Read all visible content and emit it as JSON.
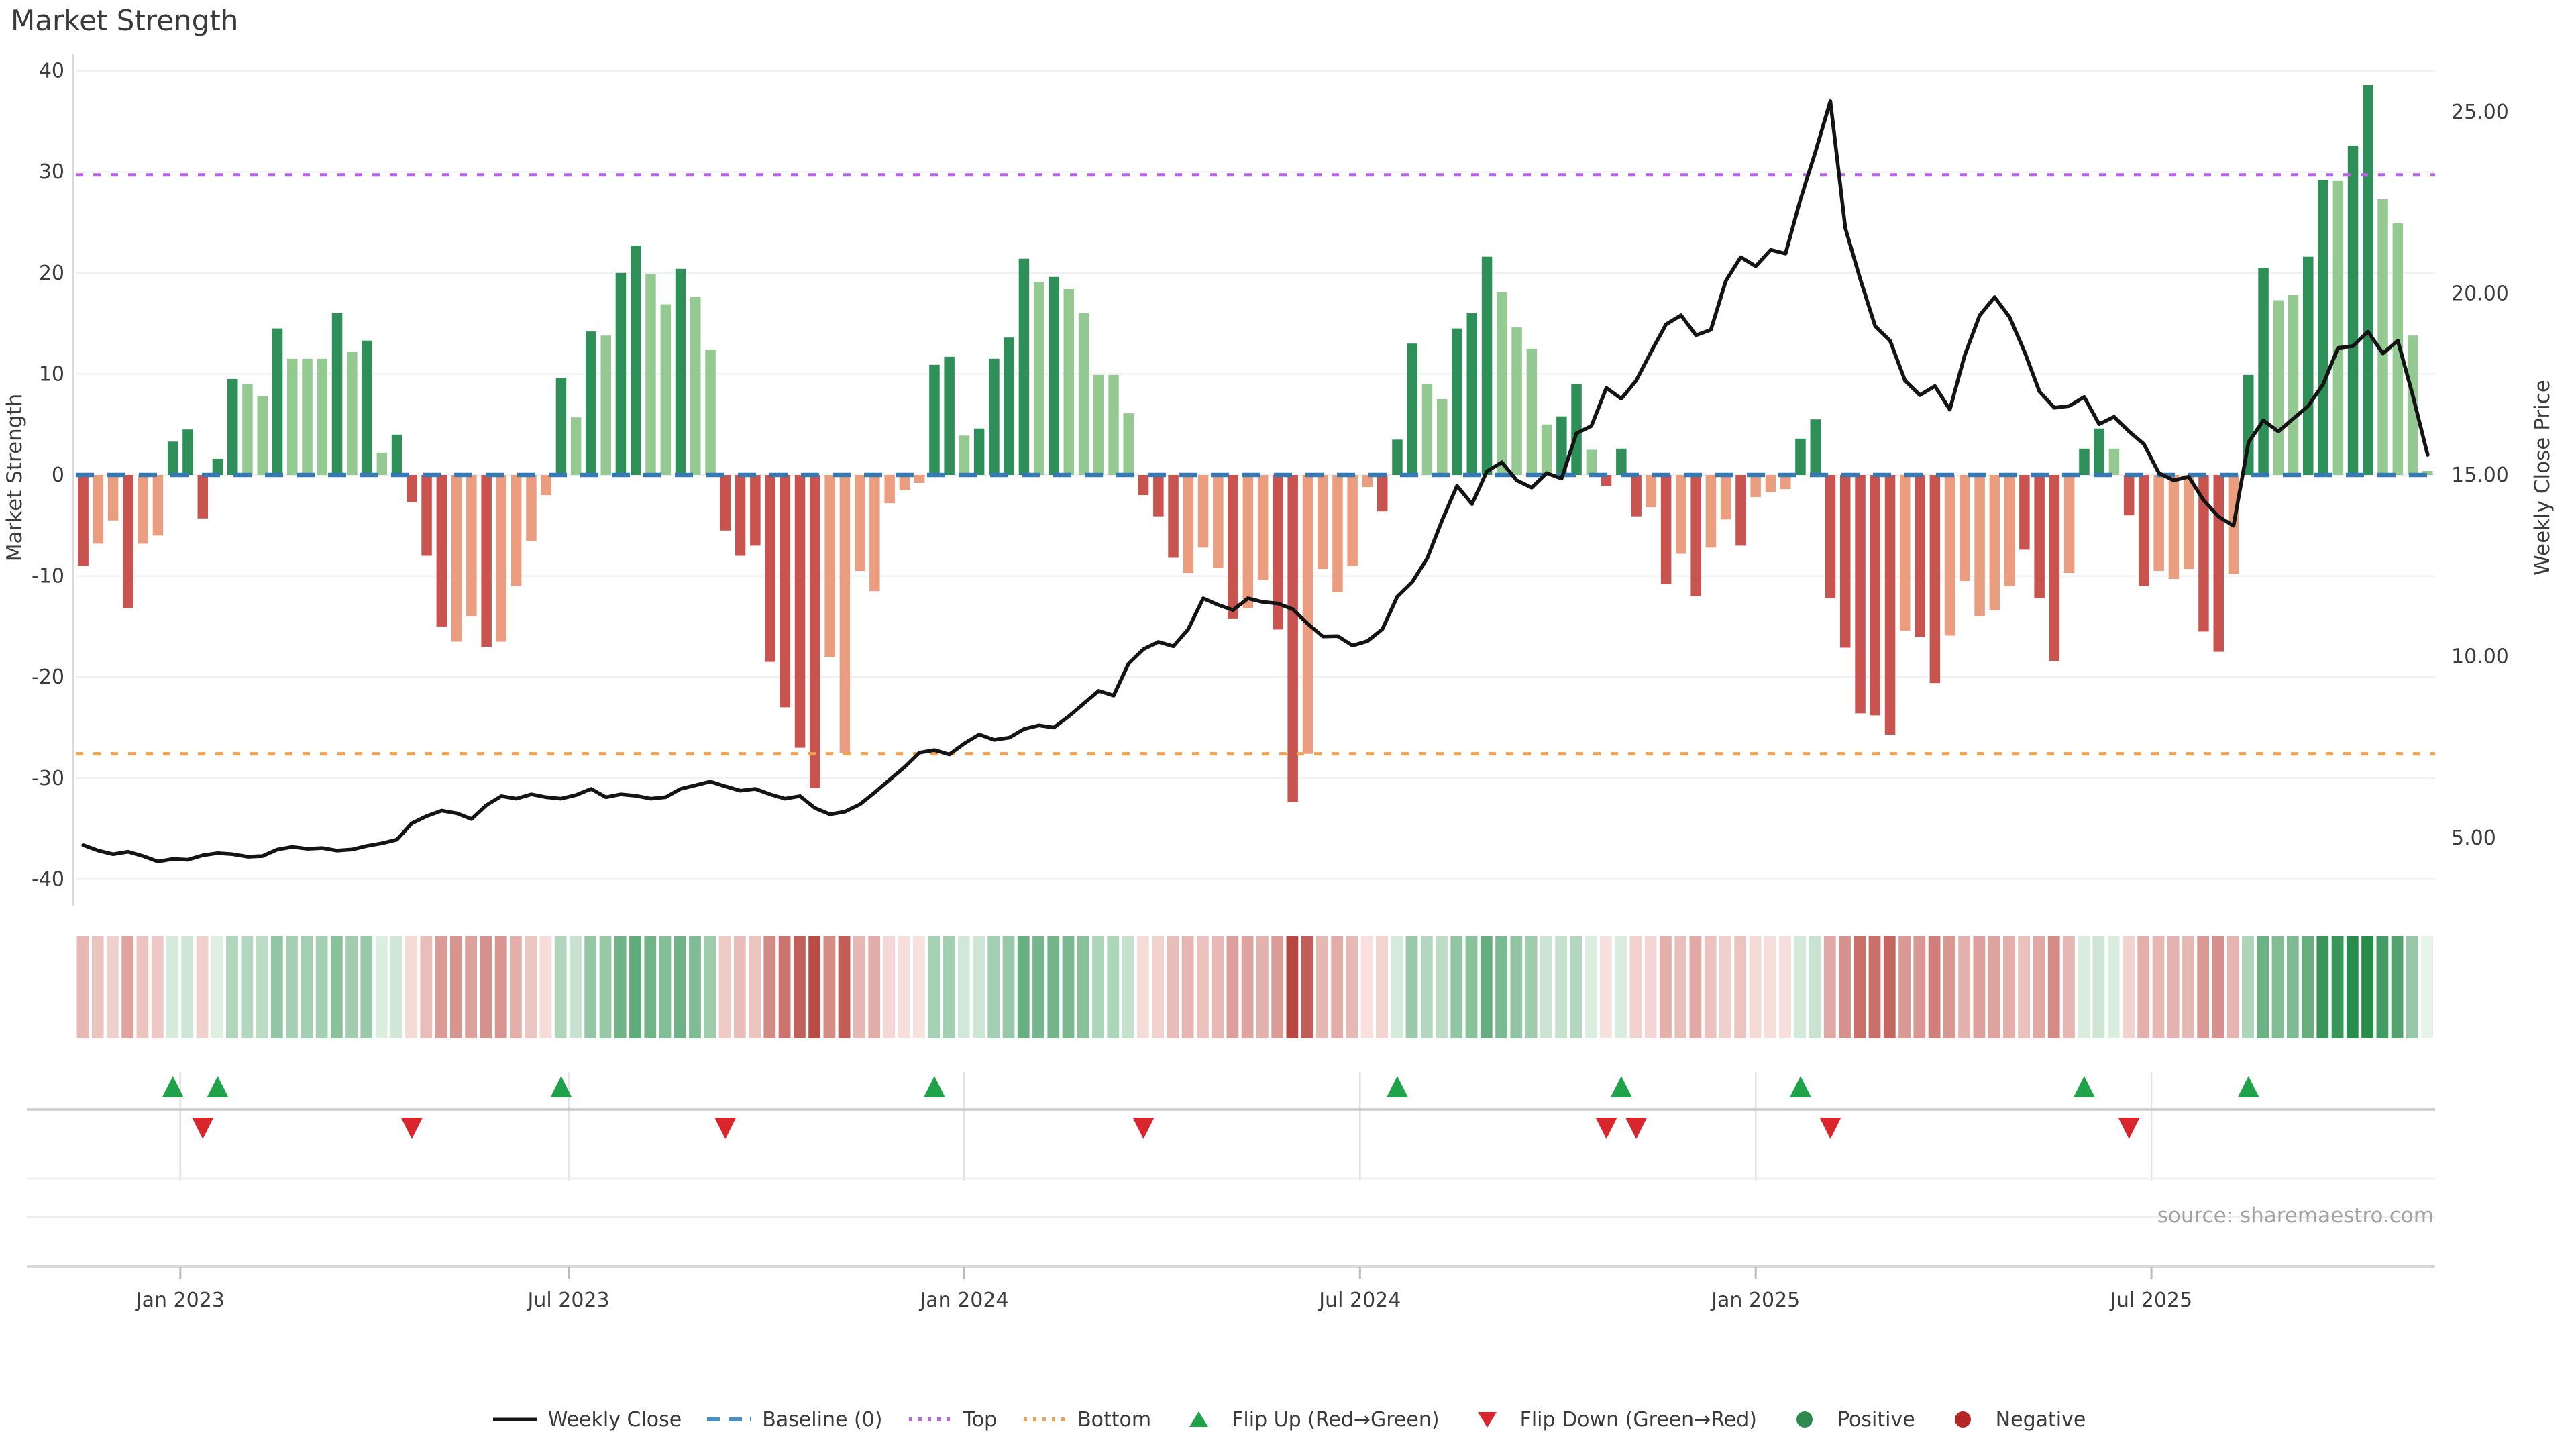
{
  "title": "Market Strength",
  "source": "source: sharemaestro.com",
  "colors": {
    "bar_dark_green": "#2f8f58",
    "bar_light_green": "#94ca92",
    "bar_dark_red": "#c9534f",
    "bar_light_red": "#ea9d7f",
    "baseline_blue": "#3579b5",
    "top_purple": "#b465e0",
    "bottom_orange": "#f2a14e",
    "price_line": "#141414",
    "flip_up_green": "#1fa24a",
    "flip_down_red": "#d8262c",
    "positive_dot": "#2c8a4f",
    "negative_dot": "#b42525",
    "grid": "#f0f0f5",
    "spine": "#d9d9d9",
    "tick_text": "#3c3c3c",
    "heat_pos_low": [
      233,
      245,
      235
    ],
    "heat_pos_high": [
      40,
      140,
      75
    ],
    "heat_neg_low": [
      249,
      230,
      227
    ],
    "heat_neg_high": [
      185,
      70,
      64
    ]
  },
  "chart_data": {
    "type": "bar+line",
    "title": "Market Strength",
    "n_weeks": 158,
    "left_axis": {
      "label": "Market Strength",
      "ticks": [
        40,
        30,
        20,
        10,
        0,
        -10,
        -20,
        -30,
        -40
      ],
      "range": [
        -42,
        42
      ],
      "grid": true
    },
    "right_axis": {
      "label": "Weekly Close Price",
      "ticks": [
        "25.00",
        "20.00",
        "15.00",
        "10.00",
        "5.00"
      ],
      "tick_values": [
        25,
        20,
        15,
        10,
        5
      ],
      "range": [
        3.1,
        26.6
      ]
    },
    "x_axis": {
      "tick_labels": [
        "Jan 2023",
        "Jul 2023",
        "Jan 2024",
        "Jul 2024",
        "Jan 2025",
        "Jul 2025"
      ],
      "tick_weeks": [
        7,
        33,
        59.5,
        86,
        112.5,
        139
      ]
    },
    "reference_lines": {
      "baseline": 0,
      "top": 29.7,
      "bottom": -27.6
    },
    "series": [
      {
        "name": "Market Strength",
        "type": "bar",
        "axis": "left",
        "values": [
          -9.0,
          -6.8,
          -4.5,
          -13.2,
          -6.8,
          -6.0,
          3.3,
          4.5,
          -4.3,
          1.6,
          9.5,
          9.0,
          7.8,
          14.5,
          11.5,
          11.5,
          11.5,
          16.0,
          12.2,
          13.3,
          2.2,
          4.0,
          -2.7,
          -8.0,
          -15.0,
          -16.5,
          -14.0,
          -17.0,
          -16.5,
          -11.0,
          -6.5,
          -2.0,
          9.6,
          5.7,
          14.2,
          13.8,
          20.0,
          22.7,
          19.9,
          16.9,
          20.4,
          17.6,
          12.4,
          -5.5,
          -8.0,
          -7.0,
          -18.5,
          -23.0,
          -27.0,
          -31.0,
          -18.0,
          -27.5,
          -9.5,
          -11.5,
          -2.8,
          -1.5,
          -0.8,
          10.9,
          11.7,
          3.9,
          4.6,
          11.5,
          13.6,
          21.4,
          19.1,
          19.6,
          18.4,
          16.0,
          9.9,
          9.9,
          6.1,
          -2.0,
          -4.1,
          -8.2,
          -9.7,
          -7.2,
          -9.2,
          -14.2,
          -13.2,
          -10.4,
          -15.3,
          -32.4,
          -27.6,
          -9.3,
          -11.6,
          -9.0,
          -1.2,
          -3.6,
          3.5,
          13.0,
          9.0,
          7.5,
          14.5,
          16.0,
          21.6,
          18.1,
          14.6,
          12.5,
          5.0,
          5.8,
          9.0,
          2.5,
          -1.1,
          2.6,
          -4.1,
          -3.2,
          -10.8,
          -7.8,
          -12.0,
          -7.2,
          -4.4,
          -7.0,
          -2.2,
          -1.7,
          -1.4,
          3.6,
          5.5,
          -12.2,
          -17.1,
          -23.6,
          -23.8,
          -25.7,
          -15.4,
          -16.0,
          -20.6,
          -15.9,
          -10.5,
          -14.0,
          -13.4,
          -11.0,
          -7.4,
          -12.2,
          -18.4,
          -9.7,
          2.6,
          4.6,
          2.6,
          -4.0,
          -11.0,
          -9.5,
          -10.3,
          -9.3,
          -15.5,
          -17.5,
          -9.8,
          9.9,
          20.5,
          17.3,
          17.8,
          21.6,
          29.2,
          29.1,
          32.6,
          38.6,
          27.3,
          24.9,
          13.8,
          0.4
        ],
        "shades": "dlldllddd ddlldllldldld dddlldllll dldlddlldll dddddddlllllll ddlddddldlllll dddllldllddllllld ddlldddllllddl d d dldldlldlll dd dddddlddllllldddl ddl ddlllddl ddllddlddllll"
      },
      {
        "name": "Weekly Close",
        "type": "line",
        "axis": "right",
        "values": [
          4.8,
          4.65,
          4.55,
          4.62,
          4.5,
          4.35,
          4.42,
          4.4,
          4.52,
          4.58,
          4.55,
          4.48,
          4.5,
          4.68,
          4.75,
          4.7,
          4.72,
          4.65,
          4.68,
          4.78,
          4.85,
          4.95,
          5.4,
          5.6,
          5.75,
          5.68,
          5.52,
          5.9,
          6.15,
          6.08,
          6.2,
          6.12,
          6.08,
          6.18,
          6.35,
          6.12,
          6.2,
          6.16,
          6.08,
          6.12,
          6.35,
          6.45,
          6.55,
          6.42,
          6.3,
          6.35,
          6.2,
          6.08,
          6.15,
          5.82,
          5.65,
          5.72,
          5.92,
          6.25,
          6.6,
          6.95,
          7.35,
          7.42,
          7.3,
          7.6,
          7.85,
          7.7,
          7.76,
          8.0,
          8.1,
          8.04,
          8.35,
          8.7,
          9.05,
          8.92,
          9.8,
          10.2,
          10.4,
          10.28,
          10.75,
          11.6,
          11.42,
          11.28,
          11.6,
          11.5,
          11.46,
          11.3,
          10.9,
          10.55,
          10.56,
          10.3,
          10.42,
          10.75,
          11.65,
          12.05,
          12.7,
          13.75,
          14.7,
          14.2,
          15.1,
          15.35,
          14.85,
          14.65,
          15.05,
          14.9,
          16.15,
          16.35,
          17.4,
          17.1,
          17.6,
          18.4,
          19.15,
          19.4,
          18.85,
          19.0,
          20.35,
          21.0,
          20.75,
          21.2,
          21.1,
          22.6,
          23.9,
          25.3,
          21.8,
          20.4,
          19.1,
          18.7,
          17.6,
          17.2,
          17.45,
          16.8,
          18.3,
          19.4,
          19.9,
          19.35,
          18.4,
          17.3,
          16.85,
          16.9,
          17.15,
          16.4,
          16.6,
          16.2,
          15.85,
          15.05,
          14.85,
          14.95,
          14.3,
          13.85,
          13.6,
          15.9,
          16.5,
          16.2,
          16.55,
          16.9,
          17.5,
          18.5,
          18.55,
          18.95,
          18.35,
          18.7,
          17.2,
          15.55
        ]
      }
    ],
    "flip_up_weeks": [
      6,
      9,
      32,
      57,
      88,
      103,
      115,
      134,
      145
    ],
    "flip_down_weeks": [
      8,
      22,
      43,
      71,
      102,
      104,
      117,
      137
    ],
    "heatmap": {
      "description": "weekly strip colored by Market Strength sign and intensity"
    },
    "legend": [
      {
        "label": "Weekly Close",
        "type": "line",
        "color": "#141414"
      },
      {
        "label": "Baseline (0)",
        "type": "dashed",
        "color": "#4a90c4"
      },
      {
        "label": "Top",
        "type": "dotted",
        "color": "#b465e0"
      },
      {
        "label": "Bottom",
        "type": "dotted",
        "color": "#f2a14e"
      },
      {
        "label": "Flip Up (Red→Green)",
        "type": "triangle-up",
        "color": "#1fa24a"
      },
      {
        "label": "Flip Down (Green→Red)",
        "type": "triangle-down",
        "color": "#d8262c"
      },
      {
        "label": "Positive",
        "type": "circle",
        "color": "#2c8a4f"
      },
      {
        "label": "Negative",
        "type": "circle",
        "color": "#b42525"
      }
    ],
    "legend_position": "bottom-center"
  }
}
